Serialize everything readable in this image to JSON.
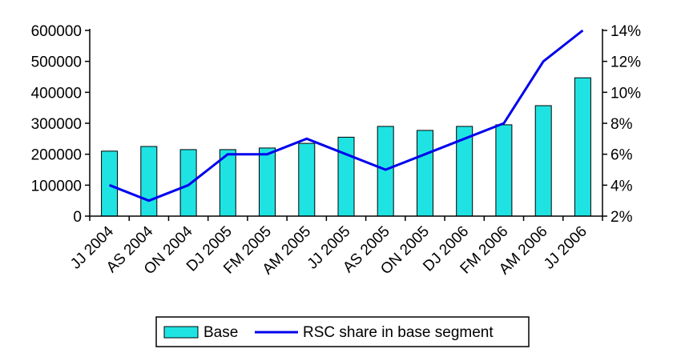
{
  "chart_data": {
    "type": "bar",
    "categories": [
      "JJ 2004",
      "AS 2004",
      "ON 2004",
      "DJ 2005",
      "FM 2005",
      "AM 2005",
      "JJ 2005",
      "AS 2005",
      "ON 2005",
      "DJ 2006",
      "FM 2006",
      "AM 2006",
      "JJ 2006"
    ],
    "series": [
      {
        "name": "Base",
        "type": "bar",
        "axis": "left",
        "color": "#1fe3e3",
        "values": [
          210000,
          225000,
          215000,
          215000,
          220000,
          235000,
          255000,
          290000,
          277000,
          290000,
          295000,
          357000,
          447000
        ]
      },
      {
        "name": "RSC share in base segment",
        "type": "line",
        "axis": "right",
        "color": "#0000ee",
        "values": [
          4.0,
          3.0,
          4.0,
          6.0,
          6.0,
          7.0,
          6.0,
          5.0,
          6.0,
          7.0,
          8.0,
          12.0,
          14.0
        ]
      }
    ],
    "y_left": {
      "ylim": [
        0,
        600000
      ],
      "ticks": [
        "0",
        "100000",
        "200000",
        "300000",
        "400000",
        "500000",
        "600000"
      ]
    },
    "y_right": {
      "ylim": [
        2,
        14
      ],
      "ticks": [
        "2%",
        "4%",
        "6%",
        "8%",
        "10%",
        "12%",
        "14%"
      ]
    },
    "title": "",
    "xlabel": "",
    "ylabel": "",
    "grid": false,
    "legend_position": "bottom"
  }
}
